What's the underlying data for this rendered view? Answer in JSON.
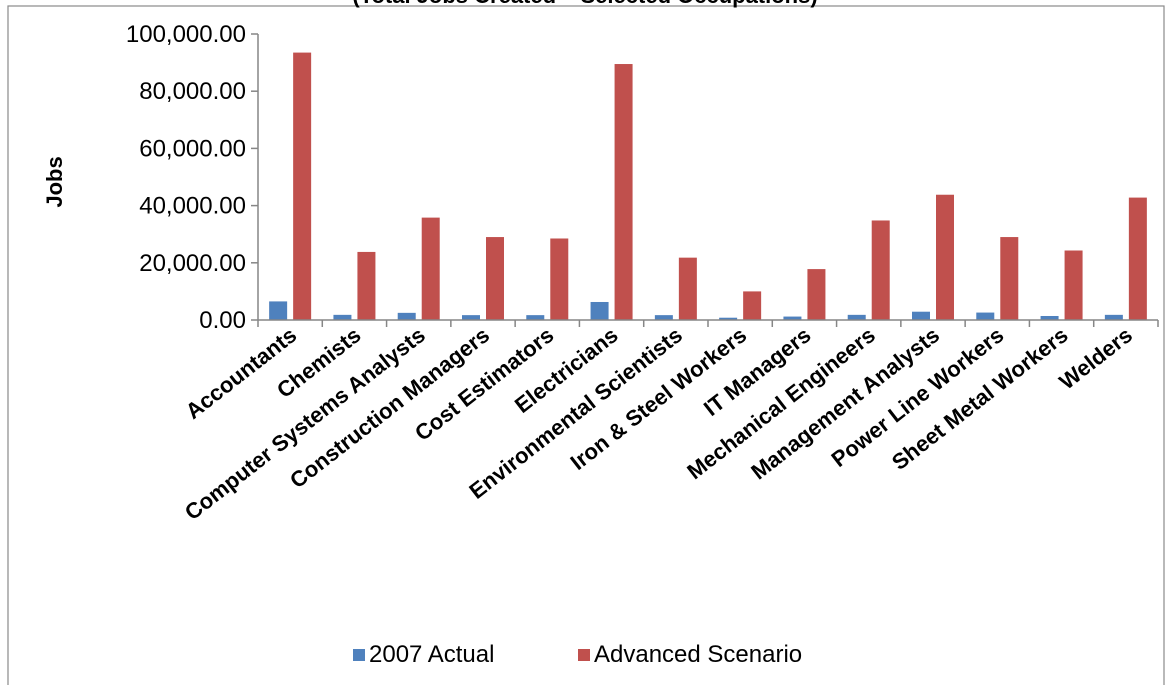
{
  "chart_data": {
    "type": "bar",
    "title": "(Total Jobs Created – Selected Occupations)",
    "xlabel": "",
    "ylabel": "Jobs",
    "ylim": [
      0,
      100000
    ],
    "yticks": [
      "0.00",
      "20,000.00",
      "40,000.00",
      "60,000.00",
      "80,000.00",
      "100,000.00"
    ],
    "ytick_values": [
      0,
      20000,
      40000,
      60000,
      80000,
      100000
    ],
    "grid": false,
    "legend_position": "bottom",
    "categories": [
      "Accountants",
      "Chemists",
      "Computer Systems Analysts",
      "Construction Managers",
      "Cost Estimators",
      "Electricians",
      "Environmental Scientists",
      "Iron & Steel Workers",
      "IT Managers",
      "Mechanical Engineers",
      "Management Analysts",
      "Power Line Workers",
      "Sheet Metal Workers",
      "Welders"
    ],
    "series": [
      {
        "name": "2007 Actual",
        "color": "#4f81bd",
        "values": [
          6500,
          1800,
          2500,
          1700,
          1700,
          6300,
          1700,
          800,
          1200,
          1800,
          2900,
          2600,
          1400,
          1800
        ]
      },
      {
        "name": "Advanced Scenario",
        "color": "#c0504d",
        "values": [
          93500,
          23800,
          35800,
          29000,
          28500,
          89500,
          21800,
          10000,
          17800,
          34800,
          43800,
          29000,
          24300,
          42800
        ]
      }
    ]
  }
}
